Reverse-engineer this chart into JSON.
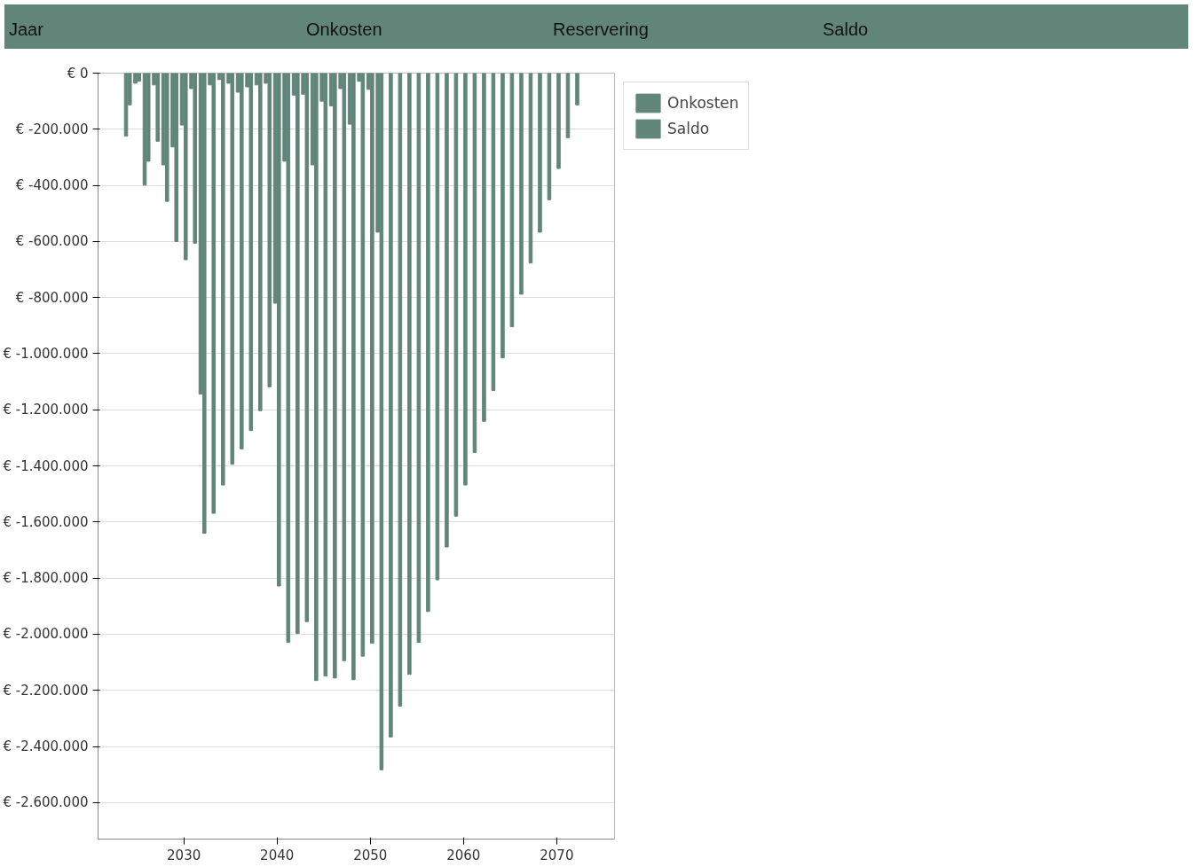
{
  "chart_data": {
    "type": "bar",
    "annotations": [
      "Jaar",
      "Onkosten",
      "Reservering",
      "Saldo"
    ],
    "x": [
      2024,
      2025,
      2026,
      2027,
      2028,
      2029,
      2030,
      2031,
      2032,
      2033,
      2034,
      2035,
      2036,
      2037,
      2038,
      2039,
      2040,
      2041,
      2042,
      2043,
      2044,
      2045,
      2046,
      2047,
      2048,
      2049,
      2050,
      2051,
      2052,
      2053,
      2054,
      2055,
      2056,
      2057,
      2058,
      2059,
      2060,
      2061,
      2062,
      2063,
      2064,
      2065,
      2066,
      2067,
      2068,
      2069,
      2070,
      2071,
      2072
    ],
    "series": [
      {
        "name": "Onkosten",
        "color": "#62857a",
        "values": [
          -224000,
          -36000,
          -399000,
          -42000,
          -327000,
          -263000,
          -185000,
          -55000,
          -1144000,
          -42000,
          -23000,
          -36000,
          -68000,
          -49000,
          -42000,
          -36000,
          -820000,
          -314000,
          -78000,
          -75000,
          -327000,
          -100000,
          -117000,
          -55000,
          -182000,
          -29000,
          -58000,
          -567000,
          null,
          null,
          null,
          null,
          null,
          null,
          null,
          null,
          null,
          null,
          null,
          null,
          null,
          null,
          null,
          null,
          null,
          null,
          null,
          null,
          null
        ]
      },
      {
        "name": "Saldo",
        "color": "#62857a",
        "values": [
          -113000,
          -29000,
          -314000,
          -243000,
          -457000,
          -600000,
          -665000,
          -606000,
          -1640000,
          -1569000,
          -1468000,
          -1394000,
          -1339000,
          -1274000,
          -1203000,
          -1118000,
          -1828000,
          -2029000,
          -1997000,
          -1955000,
          -2165000,
          -2149000,
          -2156000,
          -2094000,
          -2162000,
          -2078000,
          -2032000,
          -2483000,
          -2366000,
          -2256000,
          -2143000,
          -2029000,
          -1919000,
          -1806000,
          -1689000,
          -1579000,
          -1468000,
          -1352000,
          -1241000,
          -1131000,
          -1015000,
          -904000,
          -788000,
          -677000,
          -567000,
          -451000,
          -340000,
          -230000,
          -113000
        ]
      }
    ],
    "xlim": [
      2020.8,
      2076.2
    ],
    "xticks": [
      2030,
      2040,
      2050,
      2060,
      2070
    ],
    "ylim": [
      -2730000,
      0
    ],
    "yticks": [
      {
        "value": 0,
        "label": "€ 0"
      },
      {
        "value": -200000,
        "label": "€ -200.000"
      },
      {
        "value": -400000,
        "label": "€ -400.000"
      },
      {
        "value": -600000,
        "label": "€ -600.000"
      },
      {
        "value": -800000,
        "label": "€ -800.000"
      },
      {
        "value": -1000000,
        "label": "€ -1.000.000"
      },
      {
        "value": -1200000,
        "label": "€ -1.200.000"
      },
      {
        "value": -1400000,
        "label": "€ -1.400.000"
      },
      {
        "value": -1600000,
        "label": "€ -1.600.000"
      },
      {
        "value": -1800000,
        "label": "€ -1.800.000"
      },
      {
        "value": -2000000,
        "label": "€ -2.000.000"
      },
      {
        "value": -2200000,
        "label": "€ -2.200.000"
      },
      {
        "value": -2400000,
        "label": "€ -2.400.000"
      },
      {
        "value": -2600000,
        "label": "€ -2.600.000"
      }
    ],
    "grid": "y",
    "legend": "right"
  }
}
